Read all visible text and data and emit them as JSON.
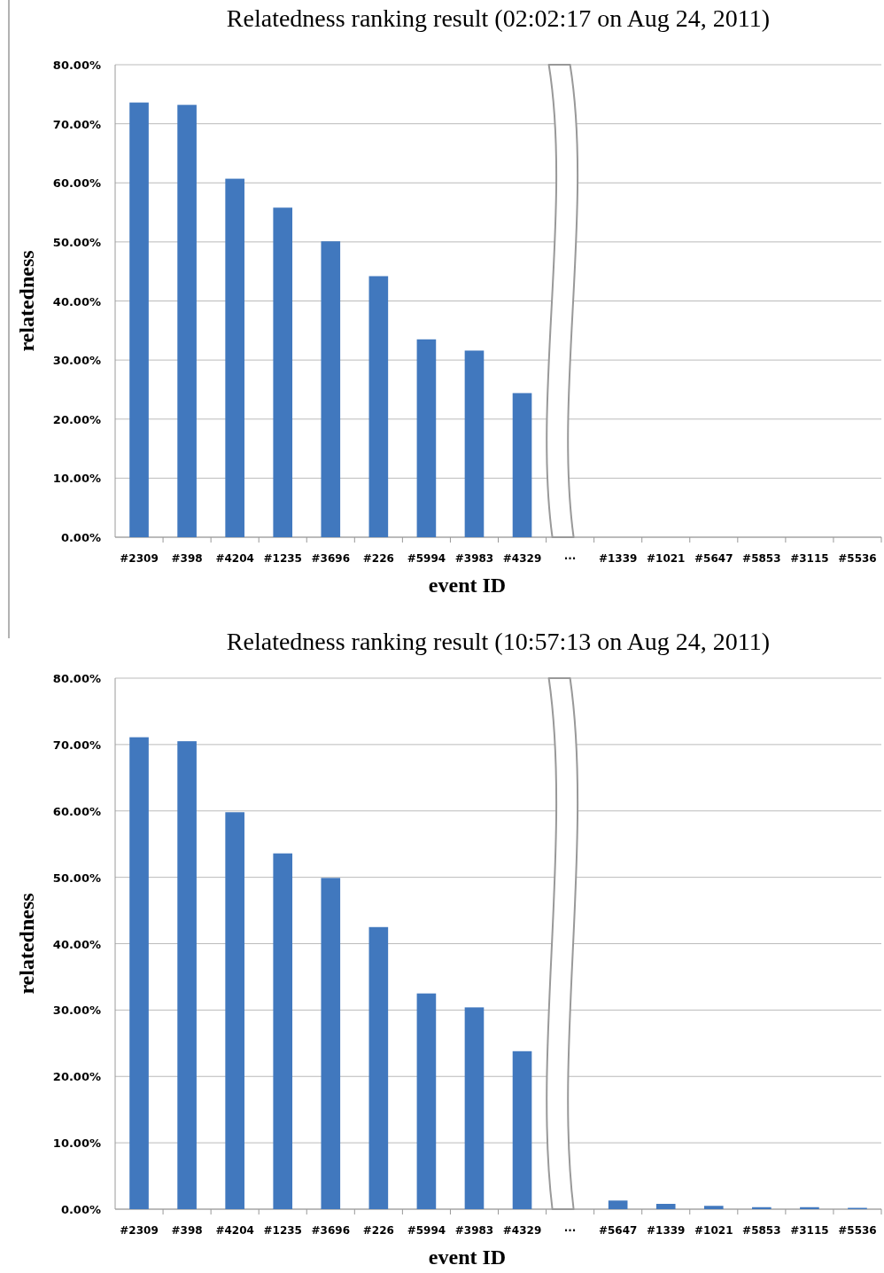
{
  "chart_data": [
    {
      "type": "bar",
      "title": "Relatedness ranking result (02:02:17 on Aug 24, 2011)",
      "xlabel": "event ID",
      "ylabel": "relatedness",
      "categories": [
        "#2309",
        "#398",
        "#4204",
        "#1235",
        "#3696",
        "#226",
        "#5994",
        "#3983",
        "#4329",
        "···",
        "#1339",
        "#1021",
        "#5647",
        "#5853",
        "#3115",
        "#5536"
      ],
      "values": [
        73.6,
        73.2,
        60.7,
        55.8,
        50.1,
        44.2,
        33.5,
        31.6,
        24.4,
        null,
        0,
        0,
        0,
        0,
        0,
        0
      ],
      "color": "#4178be",
      "ylim": [
        0,
        80
      ],
      "yticks": [
        {
          "value": 0,
          "label": "0.00%"
        },
        {
          "value": 10,
          "label": "10.00%"
        },
        {
          "value": 20,
          "label": "20.00%"
        },
        {
          "value": 30,
          "label": "30.00%"
        },
        {
          "value": 40,
          "label": "40.00%"
        },
        {
          "value": 50,
          "label": "50.00%"
        },
        {
          "value": 60,
          "label": "60.00%"
        },
        {
          "value": 70,
          "label": "70.00%"
        },
        {
          "value": 80,
          "label": "80.00%"
        }
      ],
      "grid": "y"
    },
    {
      "type": "bar",
      "title": "Relatedness ranking result (10:57:13 on Aug 24, 2011)",
      "xlabel": "event ID",
      "ylabel": "relatedness",
      "categories": [
        "#2309",
        "#398",
        "#4204",
        "#1235",
        "#3696",
        "#226",
        "#5994",
        "#3983",
        "#4329",
        "···",
        "#5647",
        "#1339",
        "#1021",
        "#5853",
        "#3115",
        "#5536"
      ],
      "values": [
        71.1,
        70.5,
        59.8,
        53.6,
        49.9,
        42.5,
        32.5,
        30.4,
        23.8,
        null,
        1.3,
        0.8,
        0.5,
        0.3,
        0.3,
        0.2
      ],
      "color": "#4178be",
      "ylim": [
        0,
        80
      ],
      "yticks": [
        {
          "value": 0,
          "label": "0.00%"
        },
        {
          "value": 10,
          "label": "10.00%"
        },
        {
          "value": 20,
          "label": "20.00%"
        },
        {
          "value": 30,
          "label": "30.00%"
        },
        {
          "value": 40,
          "label": "40.00%"
        },
        {
          "value": 50,
          "label": "50.00%"
        },
        {
          "value": 60,
          "label": "60.00%"
        },
        {
          "value": 70,
          "label": "70.00%"
        },
        {
          "value": 80,
          "label": "80.00%"
        }
      ],
      "grid": "y"
    }
  ]
}
